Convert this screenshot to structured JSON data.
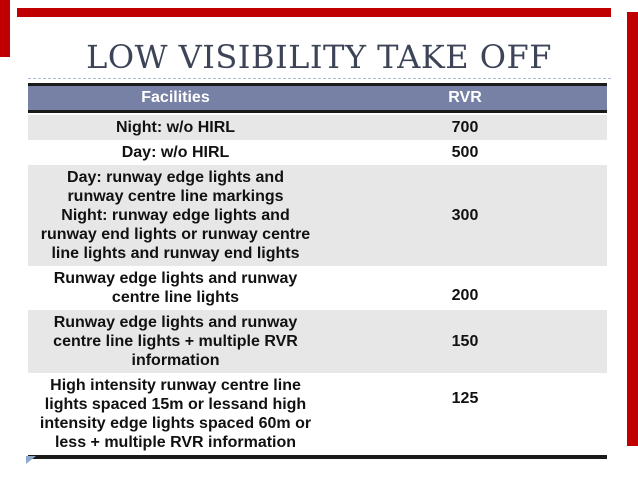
{
  "title": "LOW VISIBILITY TAKE OFF",
  "table": {
    "columns": [
      "Facilities",
      "RVR"
    ],
    "rows": [
      {
        "facility": "Night: w/o HIRL",
        "rvr": "700"
      },
      {
        "facility": "Day: w/o HIRL",
        "rvr": "500"
      },
      {
        "facility": "Day: runway edge lights and\nrunway centre line markings\nNight: runway edge lights and\nrunway end lights or runway centre\nline lights and runway end lights",
        "rvr": "300"
      },
      {
        "facility": "Runway edge lights and runway\ncentre line lights",
        "rvr": "200"
      },
      {
        "facility": "Runway edge lights and runway\ncentre line lights + multiple RVR\ninformation",
        "rvr": "150"
      },
      {
        "facility": "High intensity runway centre line\nlights spaced 15m or lessand high\nintensity edge lights spaced 60m or\nless + multiple RVR information",
        "rvr": "125"
      }
    ]
  },
  "colors": {
    "accent_red": "#C00000",
    "header_bg": "#7781A6",
    "header_text": "#FFFFFF",
    "row_alt_bg": "#E7E7E7",
    "row_bg": "#FFFFFF",
    "border_black": "#1A1A1A",
    "title_text": "#3D4458",
    "dashed_line": "#A9BDD9",
    "corner_triangle": "#8FA9CB",
    "cell_text": "#111111"
  }
}
